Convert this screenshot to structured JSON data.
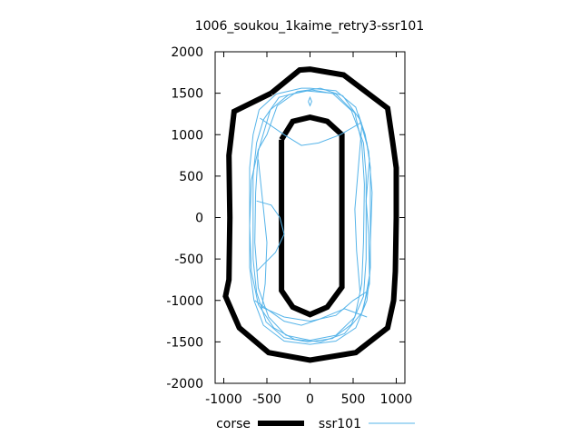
{
  "chart_data": {
    "type": "line",
    "title": "1006_soukou_1kaime_retry3-ssr101",
    "xlabel": "",
    "ylabel": "",
    "xlim": [
      -1100,
      1100
    ],
    "ylim": [
      -2000,
      2000
    ],
    "xticks": [
      -1000,
      -500,
      0,
      500,
      1000
    ],
    "yticks": [
      -2000,
      -1500,
      -1000,
      -500,
      0,
      500,
      1000,
      1500,
      2000
    ],
    "grid": false,
    "legend_position": "bottom",
    "series": [
      {
        "name": "corse",
        "color": "#000000",
        "paths": [
          [
            [
              -450,
              1500
            ],
            [
              -120,
              1780
            ],
            [
              0,
              1790
            ],
            [
              390,
              1720
            ],
            [
              900,
              1320
            ],
            [
              960,
              900
            ],
            [
              1000,
              600
            ],
            [
              1000,
              0
            ],
            [
              990,
              -650
            ],
            [
              970,
              -1000
            ],
            [
              900,
              -1330
            ],
            [
              530,
              -1630
            ],
            [
              0,
              -1720
            ],
            [
              -480,
              -1630
            ],
            [
              -820,
              -1330
            ],
            [
              -980,
              -950
            ],
            [
              -940,
              -750
            ],
            [
              -930,
              0
            ],
            [
              -940,
              750
            ],
            [
              -880,
              1280
            ],
            [
              -450,
              1500
            ]
          ],
          [
            [
              -330,
              940
            ],
            [
              -200,
              1160
            ],
            [
              0,
              1210
            ],
            [
              200,
              1160
            ],
            [
              370,
              1000
            ],
            [
              370,
              -840
            ],
            [
              200,
              -1080
            ],
            [
              0,
              -1170
            ],
            [
              -200,
              -1080
            ],
            [
              -330,
              -880
            ],
            [
              -330,
              940
            ]
          ]
        ]
      },
      {
        "name": "ssr101",
        "color": "#56b4e9",
        "paths": [
          [
            [
              -590,
              1300
            ],
            [
              -390,
              1490
            ],
            [
              -100,
              1560
            ],
            [
              0,
              1560
            ],
            [
              300,
              1530
            ],
            [
              530,
              1330
            ],
            [
              660,
              900
            ],
            [
              700,
              600
            ],
            [
              700,
              -600
            ],
            [
              660,
              -1000
            ],
            [
              530,
              -1330
            ],
            [
              300,
              -1490
            ],
            [
              0,
              -1530
            ],
            [
              -300,
              -1490
            ],
            [
              -540,
              -1300
            ],
            [
              -650,
              -1000
            ],
            [
              -700,
              -600
            ],
            [
              -700,
              600
            ],
            [
              -660,
              1000
            ],
            [
              -590,
              1300
            ]
          ],
          [
            [
              -540,
              1180
            ],
            [
              -360,
              1450
            ],
            [
              -60,
              1530
            ],
            [
              260,
              1500
            ],
            [
              480,
              1290
            ],
            [
              620,
              900
            ],
            [
              650,
              500
            ],
            [
              650,
              -500
            ],
            [
              620,
              -950
            ],
            [
              480,
              -1290
            ],
            [
              260,
              -1460
            ],
            [
              -30,
              -1500
            ],
            [
              -300,
              -1450
            ],
            [
              -510,
              -1260
            ],
            [
              -620,
              -900
            ],
            [
              -660,
              -500
            ],
            [
              -660,
              500
            ],
            [
              -620,
              900
            ],
            [
              -540,
              1180
            ]
          ],
          [
            [
              -500,
              1000
            ],
            [
              -380,
              1350
            ],
            [
              -150,
              1520
            ],
            [
              120,
              1560
            ],
            [
              380,
              1470
            ],
            [
              580,
              1180
            ],
            [
              680,
              800
            ],
            [
              720,
              300
            ],
            [
              700,
              -300
            ],
            [
              690,
              -800
            ],
            [
              600,
              -1150
            ],
            [
              400,
              -1400
            ],
            [
              120,
              -1500
            ],
            [
              -180,
              -1470
            ],
            [
              -420,
              -1330
            ],
            [
              -600,
              -1050
            ],
            [
              -680,
              -650
            ],
            [
              -700,
              -100
            ],
            [
              -680,
              450
            ],
            [
              -600,
              820
            ],
            [
              -500,
              1000
            ]
          ],
          [
            [
              -460,
              1300
            ],
            [
              -250,
              1480
            ],
            [
              20,
              1540
            ],
            [
              300,
              1490
            ],
            [
              520,
              1260
            ],
            [
              600,
              900
            ],
            [
              630,
              400
            ],
            [
              620,
              -300
            ],
            [
              600,
              -800
            ],
            [
              520,
              -1200
            ],
            [
              300,
              -1420
            ],
            [
              0,
              -1480
            ],
            [
              -280,
              -1420
            ],
            [
              -480,
              -1200
            ],
            [
              -600,
              -850
            ],
            [
              -640,
              -300
            ],
            [
              -630,
              300
            ],
            [
              -600,
              800
            ],
            [
              -460,
              1300
            ]
          ],
          [
            [
              -560,
              -1080
            ],
            [
              -300,
              -1200
            ],
            [
              0,
              -1250
            ],
            [
              300,
              -1180
            ],
            [
              500,
              -1000
            ],
            [
              650,
              -900
            ]
          ],
          [
            [
              -620,
              -650
            ],
            [
              -400,
              -420
            ],
            [
              -300,
              -200
            ],
            [
              -350,
              0
            ],
            [
              -450,
              150
            ],
            [
              -620,
              200
            ]
          ],
          [
            [
              -580,
              1200
            ],
            [
              -300,
              1000
            ],
            [
              -100,
              870
            ],
            [
              100,
              900
            ],
            [
              350,
              1000
            ],
            [
              600,
              1150
            ]
          ],
          [
            [
              -640,
              -1000
            ],
            [
              -300,
              -1250
            ],
            [
              -100,
              -1300
            ],
            [
              100,
              -1230
            ],
            [
              400,
              -1100
            ],
            [
              660,
              -1200
            ]
          ],
          [
            [
              -20,
              1400
            ],
            [
              0,
              1450
            ],
            [
              20,
              1400
            ],
            [
              0,
              1350
            ],
            [
              -20,
              1400
            ]
          ],
          [
            [
              -600,
              700
            ],
            [
              -550,
              200
            ],
            [
              -500,
              -300
            ],
            [
              -520,
              -800
            ],
            [
              -560,
              -1100
            ]
          ],
          [
            [
              600,
              1100
            ],
            [
              560,
              600
            ],
            [
              520,
              100
            ],
            [
              540,
              -400
            ],
            [
              580,
              -900
            ]
          ],
          [
            [
              560,
              1250
            ],
            [
              640,
              1000
            ],
            [
              690,
              700
            ],
            [
              650,
              200
            ],
            [
              680,
              -200
            ],
            [
              690,
              -700
            ],
            [
              620,
              -1100
            ]
          ]
        ]
      }
    ]
  }
}
